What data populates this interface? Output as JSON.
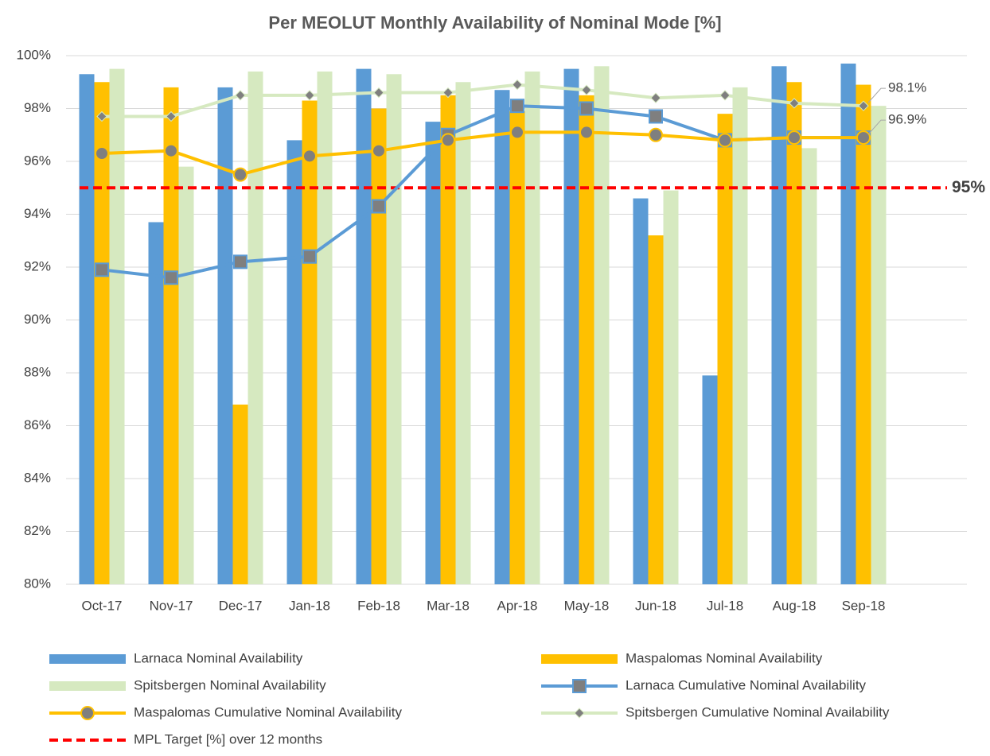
{
  "chart_data": {
    "type": "bar",
    "title": "Per MEOLUT Monthly Availability of Nominal Mode [%]",
    "categories": [
      "Oct-17",
      "Nov-17",
      "Dec-17",
      "Jan-18",
      "Feb-18",
      "Mar-18",
      "Apr-18",
      "May-18",
      "Jun-18",
      "Jul-18",
      "Aug-18",
      "Sep-18"
    ],
    "ylim": [
      80,
      100
    ],
    "yticks": [
      {
        "value": 80,
        "label": "80%"
      },
      {
        "value": 82,
        "label": "82%"
      },
      {
        "value": 84,
        "label": "84%"
      },
      {
        "value": 86,
        "label": "86%"
      },
      {
        "value": 88,
        "label": "88%"
      },
      {
        "value": 90,
        "label": "90%"
      },
      {
        "value": 92,
        "label": "92%"
      },
      {
        "value": 94,
        "label": "94%"
      },
      {
        "value": 96,
        "label": "96%"
      },
      {
        "value": 98,
        "label": "98%"
      },
      {
        "value": 100,
        "label": "100%"
      }
    ],
    "grid": true,
    "legend": "bottom",
    "series": [
      {
        "name": "Larnaca Nominal Availability",
        "kind": "bar",
        "color": "#5b9bd5",
        "values": [
          99.3,
          93.7,
          98.8,
          96.8,
          99.5,
          97.5,
          98.7,
          99.5,
          94.6,
          87.9,
          99.6,
          99.7
        ]
      },
      {
        "name": "Maspalomas Nominal Availability",
        "kind": "bar",
        "color": "#ffc000",
        "values": [
          99.0,
          98.8,
          86.8,
          98.3,
          98.0,
          98.5,
          97.9,
          98.5,
          93.2,
          97.8,
          99.0,
          98.9
        ]
      },
      {
        "name": "Spitsbergen Nominal Availability",
        "kind": "bar",
        "color": "#d6e9c0",
        "values": [
          99.5,
          95.8,
          99.4,
          99.4,
          99.3,
          99.0,
          99.4,
          99.6,
          94.9,
          98.8,
          96.5,
          98.1
        ]
      },
      {
        "name": "Larnaca Cumulative Nominal Availability",
        "kind": "line",
        "marker": "square",
        "color": "#5b9bd5",
        "values": [
          91.9,
          91.6,
          92.2,
          92.4,
          94.3,
          97.0,
          98.1,
          98.0,
          97.7,
          96.8,
          96.9,
          96.9
        ]
      },
      {
        "name": "Maspalomas Cumulative Nominal Availability",
        "kind": "line",
        "marker": "circle",
        "color": "#ffc000",
        "values": [
          96.3,
          96.4,
          95.5,
          96.2,
          96.4,
          96.8,
          97.1,
          97.1,
          97.0,
          96.8,
          96.9,
          96.9
        ],
        "value_labels": [
          null,
          null,
          null,
          null,
          null,
          null,
          null,
          null,
          null,
          null,
          null,
          "96.9%"
        ]
      },
      {
        "name": "Spitsbergen Cumulative Nominal Availability",
        "kind": "line",
        "marker": "diamond",
        "color": "#d6e9c0",
        "values": [
          97.7,
          97.7,
          98.5,
          98.5,
          98.6,
          98.6,
          98.9,
          98.7,
          98.4,
          98.5,
          98.2,
          98.1
        ],
        "value_labels": [
          null,
          null,
          null,
          null,
          null,
          null,
          null,
          null,
          null,
          null,
          null,
          "98.1%"
        ]
      }
    ],
    "target": {
      "name": "MPL Target [%] over 12 months",
      "value": 95,
      "label": "95%",
      "color": "#ff0000"
    }
  }
}
